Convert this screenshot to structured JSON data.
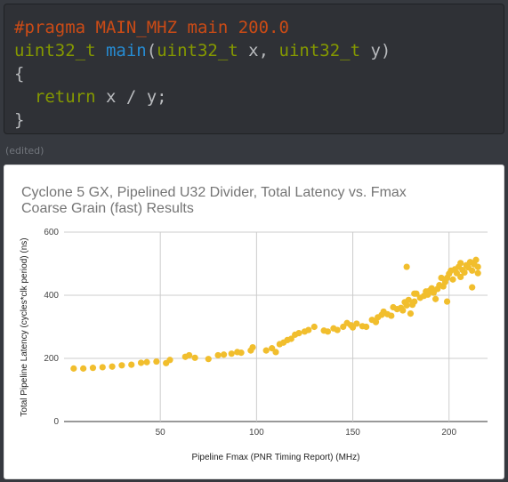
{
  "code": {
    "preproc": "#pragma",
    "macro": "MAIN_MHZ",
    "macro_arg": "main",
    "macro_val": "200.0",
    "ret_type": "uint32_t",
    "fn_name": "main",
    "open_paren": "(",
    "p1_type": "uint32_t",
    "p1_name": "x,",
    "p2_type": "uint32_t",
    "p2_name": "y)",
    "brace_open": "{",
    "return_kw": "return",
    "return_expr": "x / y;",
    "brace_close": "}"
  },
  "edited_label": "(edited)",
  "colors": {
    "background": "#36393f",
    "code_bg": "#2f3136",
    "keyword": "#859900",
    "function": "#268bd2",
    "preprocessor": "#cb4b16",
    "point": "#f1be2d"
  },
  "chart_data": {
    "type": "scatter",
    "title_line1": "Cyclone 5 GX, Pipelined U32 Divider, Total Latency vs. Fmax",
    "title_line2": "Coarse Grain (fast) Results",
    "xlabel": "Pipeline Fmax (PNR Timing Report) (MHz)",
    "ylabel": "Total Pipeline Latency (cycles*clk period) (ns)",
    "xlim": [
      0,
      220
    ],
    "ylim": [
      0,
      600
    ],
    "xticks": [
      50,
      100,
      150,
      200
    ],
    "yticks": [
      0,
      200,
      400,
      600
    ],
    "grid": true,
    "legend": "none",
    "points": [
      [
        5,
        168
      ],
      [
        10,
        168
      ],
      [
        15,
        170
      ],
      [
        20,
        172
      ],
      [
        25,
        174
      ],
      [
        30,
        178
      ],
      [
        35,
        180
      ],
      [
        40,
        186
      ],
      [
        43,
        188
      ],
      [
        48,
        190
      ],
      [
        53,
        185
      ],
      [
        55,
        195
      ],
      [
        63,
        205
      ],
      [
        65,
        210
      ],
      [
        68,
        202
      ],
      [
        75,
        198
      ],
      [
        80,
        210
      ],
      [
        83,
        212
      ],
      [
        87,
        215
      ],
      [
        90,
        220
      ],
      [
        92,
        218
      ],
      [
        97,
        225
      ],
      [
        98,
        235
      ],
      [
        105,
        225
      ],
      [
        108,
        232
      ],
      [
        110,
        220
      ],
      [
        112,
        245
      ],
      [
        114,
        250
      ],
      [
        116,
        258
      ],
      [
        118,
        262
      ],
      [
        120,
        275
      ],
      [
        122,
        280
      ],
      [
        125,
        285
      ],
      [
        127,
        290
      ],
      [
        130,
        300
      ],
      [
        135,
        288
      ],
      [
        137,
        285
      ],
      [
        140,
        295
      ],
      [
        142,
        290
      ],
      [
        145,
        300
      ],
      [
        147,
        312
      ],
      [
        149,
        305
      ],
      [
        150,
        298
      ],
      [
        152,
        310
      ],
      [
        155,
        302
      ],
      [
        157,
        300
      ],
      [
        160,
        322
      ],
      [
        162,
        315
      ],
      [
        163,
        330
      ],
      [
        165,
        338
      ],
      [
        166,
        348
      ],
      [
        168,
        340
      ],
      [
        170,
        335
      ],
      [
        171,
        362
      ],
      [
        173,
        356
      ],
      [
        175,
        360
      ],
      [
        176,
        352
      ],
      [
        177,
        378
      ],
      [
        178,
        368
      ],
      [
        179,
        385
      ],
      [
        180,
        342
      ],
      [
        181,
        370
      ],
      [
        182,
        380
      ],
      [
        183,
        405
      ],
      [
        185,
        392
      ],
      [
        187,
        398
      ],
      [
        188,
        412
      ],
      [
        189,
        402
      ],
      [
        190,
        415
      ],
      [
        191,
        422
      ],
      [
        192,
        408
      ],
      [
        193,
        388
      ],
      [
        194,
        420
      ],
      [
        195,
        432
      ],
      [
        197,
        428
      ],
      [
        198,
        442
      ],
      [
        199,
        455
      ],
      [
        200,
        468
      ],
      [
        201,
        478
      ],
      [
        202,
        450
      ],
      [
        203,
        482
      ],
      [
        204,
        470
      ],
      [
        205,
        490
      ],
      [
        206,
        502
      ],
      [
        207,
        480
      ],
      [
        208,
        472
      ],
      [
        209,
        495
      ],
      [
        210,
        488
      ],
      [
        211,
        505
      ],
      [
        212,
        478
      ],
      [
        213,
        498
      ],
      [
        214,
        512
      ],
      [
        215,
        490
      ],
      [
        178,
        490
      ],
      [
        196,
        455
      ],
      [
        199,
        380
      ],
      [
        206,
        458
      ],
      [
        212,
        425
      ],
      [
        215,
        470
      ],
      [
        182,
        405
      ]
    ]
  }
}
